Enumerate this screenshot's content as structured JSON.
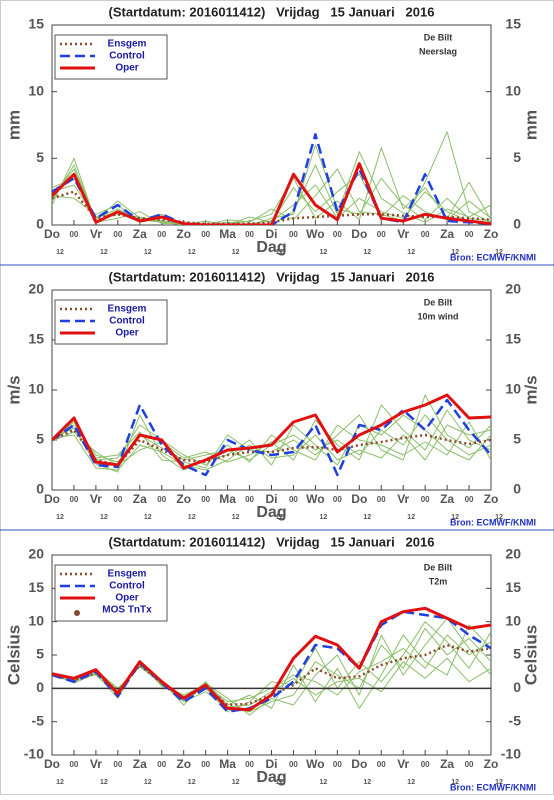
{
  "chart_data": [
    {
      "type": "line",
      "title": "(Startdatum: 2016011412)   Vrijdag   15 Januari   2016",
      "location": "De Bilt",
      "variable": "Neerslag",
      "xlabel": "Dag",
      "ylabel": "mm",
      "source": "Bron: ECMWF/KNMI",
      "x": [
        0,
        12,
        24,
        36,
        48,
        60,
        72,
        84,
        96,
        108,
        120,
        132,
        144,
        156,
        168,
        180,
        192,
        204,
        216,
        228,
        240
      ],
      "xlim": [
        0,
        240
      ],
      "xticks": [
        {
          "value": 0,
          "label": "Do"
        },
        {
          "value": 12,
          "label": "00"
        },
        {
          "value": 24,
          "label": "Vr"
        },
        {
          "value": 36,
          "label": "00"
        },
        {
          "value": 48,
          "label": "Za"
        },
        {
          "value": 60,
          "label": "00"
        },
        {
          "value": 72,
          "label": "Zo"
        },
        {
          "value": 84,
          "label": "00"
        },
        {
          "value": 96,
          "label": "Ma"
        },
        {
          "value": 108,
          "label": "00"
        },
        {
          "value": 120,
          "label": "Di"
        },
        {
          "value": 132,
          "label": "00"
        },
        {
          "value": 144,
          "label": "Wo"
        },
        {
          "value": 156,
          "label": "00"
        },
        {
          "value": 168,
          "label": "Do"
        },
        {
          "value": 180,
          "label": "00"
        },
        {
          "value": 192,
          "label": "Vr"
        },
        {
          "value": 204,
          "label": "00"
        },
        {
          "value": 216,
          "label": "Za"
        },
        {
          "value": 228,
          "label": "00"
        },
        {
          "value": 240,
          "label": "Zo"
        }
      ],
      "xtick_sublabel": "12",
      "ylim": [
        0,
        15
      ],
      "yticks": [
        0,
        5,
        10,
        15
      ],
      "zero_line": false,
      "members": {
        "color": "#8cbf6a",
        "values": [
          [
            2.5,
            3.0,
            0.5,
            1.2,
            0.4,
            0.2,
            0.0,
            0.0,
            0.0,
            0.1,
            0.3,
            1.5,
            3.0,
            0.5,
            2.0,
            1.0,
            0.5,
            2.5,
            1.0,
            0.3,
            0.2
          ],
          [
            1.8,
            4.5,
            0.3,
            0.8,
            0.6,
            0.3,
            0.1,
            0.0,
            0.2,
            0.0,
            0.5,
            0.8,
            6.0,
            1.2,
            0.8,
            3.5,
            1.5,
            0.4,
            2.0,
            0.5,
            0.3
          ],
          [
            2.2,
            2.0,
            0.8,
            1.5,
            0.2,
            0.5,
            0.0,
            0.1,
            0.0,
            0.6,
            0.2,
            2.8,
            1.0,
            2.5,
            3.8,
            0.6,
            2.2,
            1.0,
            0.4,
            1.8,
            0.5
          ],
          [
            1.5,
            5.0,
            0.2,
            0.5,
            1.0,
            0.1,
            0.2,
            0.0,
            0.4,
            0.2,
            1.2,
            0.4,
            2.2,
            4.2,
            1.0,
            0.8,
            0.3,
            3.2,
            7.0,
            1.0,
            0.2
          ],
          [
            2.8,
            3.5,
            0.6,
            0.9,
            0.3,
            0.8,
            0.0,
            0.3,
            0.0,
            0.1,
            0.0,
            1.0,
            4.5,
            0.8,
            5.5,
            2.0,
            0.9,
            0.2,
            1.2,
            0.6,
            1.5
          ],
          [
            2.0,
            4.2,
            0.4,
            1.8,
            0.5,
            0.2,
            0.1,
            0.0,
            0.1,
            0.3,
            0.8,
            3.5,
            0.5,
            1.8,
            0.4,
            5.8,
            1.2,
            2.8,
            0.5,
            3.2,
            0.4
          ]
        ]
      },
      "series": [
        {
          "name": "Ensgem",
          "color": "#8b4a2b",
          "style": "dotted",
          "values": [
            2.0,
            2.5,
            0.5,
            0.8,
            0.5,
            0.4,
            0.2,
            0.1,
            0.1,
            0.1,
            0.2,
            0.5,
            0.6,
            0.7,
            0.8,
            0.8,
            0.7,
            0.6,
            0.6,
            0.5,
            0.4
          ]
        },
        {
          "name": "Control",
          "color": "#1f3fe0",
          "style": "dashed",
          "values": [
            2.5,
            3.5,
            0.5,
            1.5,
            0.3,
            0.8,
            0.1,
            0.0,
            0.0,
            0.0,
            0.0,
            1.0,
            6.8,
            1.0,
            4.2,
            0.5,
            0.2,
            3.8,
            0.3,
            0.2,
            0.1
          ]
        },
        {
          "name": "Oper",
          "color": "#e01010",
          "style": "solid",
          "values": [
            2.2,
            3.8,
            0.2,
            1.0,
            0.3,
            0.6,
            0.1,
            0.0,
            0.0,
            0.0,
            0.0,
            3.8,
            1.5,
            0.4,
            4.6,
            0.5,
            0.3,
            0.8,
            0.5,
            0.3,
            0.1
          ]
        }
      ]
    },
    {
      "type": "line",
      "title": "(Startdatum: 2016011412)   Vrijdag   15 Januari   2016",
      "location": "De Bilt",
      "variable": "10m wind",
      "xlabel": "Dag",
      "ylabel": "m/s",
      "source": "Bron: ECMWF/KNMI",
      "x": [
        0,
        12,
        24,
        36,
        48,
        60,
        72,
        84,
        96,
        108,
        120,
        132,
        144,
        156,
        168,
        180,
        192,
        204,
        216,
        228,
        240
      ],
      "xlim": [
        0,
        240
      ],
      "xticks": [
        {
          "value": 0,
          "label": "Do"
        },
        {
          "value": 12,
          "label": "00"
        },
        {
          "value": 24,
          "label": "Vr"
        },
        {
          "value": 36,
          "label": "00"
        },
        {
          "value": 48,
          "label": "Za"
        },
        {
          "value": 60,
          "label": "00"
        },
        {
          "value": 72,
          "label": "Zo"
        },
        {
          "value": 84,
          "label": "00"
        },
        {
          "value": 96,
          "label": "Ma"
        },
        {
          "value": 108,
          "label": "00"
        },
        {
          "value": 120,
          "label": "Di"
        },
        {
          "value": 132,
          "label": "00"
        },
        {
          "value": 144,
          "label": "Wo"
        },
        {
          "value": 156,
          "label": "00"
        },
        {
          "value": 168,
          "label": "Do"
        },
        {
          "value": 180,
          "label": "00"
        },
        {
          "value": 192,
          "label": "Vr"
        },
        {
          "value": 204,
          "label": "00"
        },
        {
          "value": 216,
          "label": "Za"
        },
        {
          "value": 228,
          "label": "00"
        },
        {
          "value": 240,
          "label": "Zo"
        }
      ],
      "xtick_sublabel": "12",
      "ylim": [
        0,
        20
      ],
      "yticks": [
        0,
        5,
        10,
        15,
        20
      ],
      "zero_line": false,
      "members": {
        "color": "#8cbf6a",
        "values": [
          [
            5.0,
            6.5,
            3.5,
            2.8,
            5.5,
            4.2,
            3.0,
            3.5,
            4.0,
            3.0,
            4.5,
            5.5,
            4.0,
            5.0,
            3.5,
            6.0,
            4.5,
            7.5,
            5.0,
            3.5,
            4.5
          ],
          [
            5.2,
            5.5,
            2.2,
            2.0,
            4.5,
            3.8,
            2.5,
            2.0,
            3.0,
            4.5,
            3.2,
            3.5,
            5.5,
            3.0,
            4.0,
            3.2,
            5.5,
            3.0,
            6.5,
            5.5,
            6.0
          ],
          [
            4.8,
            7.0,
            3.0,
            3.2,
            6.5,
            5.0,
            3.5,
            2.5,
            4.5,
            2.8,
            5.5,
            4.0,
            3.0,
            6.5,
            5.0,
            4.5,
            3.5,
            4.8,
            3.5,
            6.8,
            3.0
          ],
          [
            5.1,
            6.2,
            2.6,
            1.8,
            7.5,
            3.5,
            2.0,
            3.0,
            3.5,
            5.0,
            2.5,
            6.5,
            4.5,
            2.5,
            6.5,
            5.5,
            7.5,
            6.0,
            4.0,
            3.0,
            5.5
          ],
          [
            4.9,
            5.8,
            3.8,
            2.5,
            4.0,
            4.8,
            3.2,
            3.8,
            2.8,
            3.5,
            4.8,
            3.0,
            7.0,
            4.5,
            3.0,
            8.5,
            6.0,
            4.0,
            8.0,
            5.0,
            4.0
          ],
          [
            5.0,
            6.8,
            3.2,
            3.5,
            5.8,
            3.0,
            2.8,
            2.2,
            5.5,
            4.0,
            3.8,
            5.0,
            3.5,
            5.5,
            7.5,
            4.0,
            3.0,
            9.5,
            5.5,
            4.2,
            6.5
          ]
        ]
      },
      "series": [
        {
          "name": "Ensgem",
          "color": "#8b4a2b",
          "style": "dotted",
          "values": [
            5.0,
            6.0,
            3.0,
            2.5,
            5.0,
            4.0,
            3.0,
            2.8,
            3.5,
            3.8,
            3.8,
            4.2,
            4.3,
            4.0,
            4.5,
            4.8,
            5.2,
            5.5,
            5.0,
            4.6,
            5.0
          ]
        },
        {
          "name": "Control",
          "color": "#1f3fe0",
          "style": "dashed",
          "values": [
            5.0,
            6.5,
            2.5,
            2.3,
            8.5,
            4.5,
            2.5,
            1.5,
            5.0,
            4.0,
            3.5,
            3.8,
            6.5,
            1.5,
            6.5,
            6.0,
            8.0,
            6.0,
            9.0,
            6.0,
            3.5
          ]
        },
        {
          "name": "Oper",
          "color": "#e01010",
          "style": "solid",
          "values": [
            5.0,
            7.2,
            2.8,
            2.5,
            5.5,
            5.0,
            2.2,
            3.0,
            4.0,
            4.2,
            4.5,
            6.8,
            7.5,
            3.8,
            5.5,
            6.5,
            7.8,
            8.5,
            9.5,
            7.2,
            7.3
          ]
        }
      ]
    },
    {
      "type": "line",
      "title": "(Startdatum: 2016011412)   Vrijdag   15 Januari   2016",
      "location": "De Bilt",
      "variable": "T2m",
      "xlabel": "Dag",
      "ylabel": "Celsius",
      "source": "Bron: ECMWF/KNMI",
      "x": [
        0,
        12,
        24,
        36,
        48,
        60,
        72,
        84,
        96,
        108,
        120,
        132,
        144,
        156,
        168,
        180,
        192,
        204,
        216,
        228,
        240
      ],
      "xlim": [
        0,
        240
      ],
      "xticks": [
        {
          "value": 0,
          "label": "Do"
        },
        {
          "value": 12,
          "label": "00"
        },
        {
          "value": 24,
          "label": "Vr"
        },
        {
          "value": 36,
          "label": "00"
        },
        {
          "value": 48,
          "label": "Za"
        },
        {
          "value": 60,
          "label": "00"
        },
        {
          "value": 72,
          "label": "Zo"
        },
        {
          "value": 84,
          "label": "00"
        },
        {
          "value": 96,
          "label": "Ma"
        },
        {
          "value": 108,
          "label": "00"
        },
        {
          "value": 120,
          "label": "Di"
        },
        {
          "value": 132,
          "label": "00"
        },
        {
          "value": 144,
          "label": "Wo"
        },
        {
          "value": 156,
          "label": "00"
        },
        {
          "value": 168,
          "label": "Do"
        },
        {
          "value": 180,
          "label": "00"
        },
        {
          "value": 192,
          "label": "Vr"
        },
        {
          "value": 204,
          "label": "00"
        },
        {
          "value": 216,
          "label": "Za"
        },
        {
          "value": 228,
          "label": "00"
        },
        {
          "value": 240,
          "label": "Zo"
        }
      ],
      "xtick_sublabel": "12",
      "ylim": [
        -10,
        20
      ],
      "yticks": [
        -10,
        -5,
        0,
        5,
        10,
        15,
        20
      ],
      "zero_line": true,
      "members": {
        "color": "#8cbf6a",
        "values": [
          [
            2.0,
            1.0,
            2.5,
            -0.5,
            3.5,
            0.5,
            -1.0,
            0.5,
            -2.0,
            -1.5,
            0.0,
            2.0,
            1.0,
            -1.0,
            2.5,
            4.0,
            6.0,
            3.0,
            8.0,
            5.0,
            7.0
          ],
          [
            2.2,
            1.5,
            2.0,
            -1.0,
            3.8,
            1.2,
            -2.0,
            -0.5,
            -3.0,
            -3.5,
            -2.0,
            -1.0,
            4.0,
            2.0,
            0.0,
            6.5,
            3.0,
            9.0,
            5.0,
            7.5,
            4.0
          ],
          [
            1.8,
            1.2,
            2.8,
            0.0,
            3.2,
            0.8,
            -1.8,
            1.0,
            -2.5,
            -1.0,
            -3.0,
            3.5,
            -2.0,
            3.0,
            -3.0,
            2.0,
            8.0,
            4.0,
            2.0,
            9.5,
            6.0
          ],
          [
            2.1,
            0.8,
            2.2,
            -1.5,
            4.0,
            0.3,
            -1.2,
            0.0,
            -3.5,
            -2.0,
            1.0,
            0.5,
            6.0,
            0.0,
            4.0,
            1.0,
            5.0,
            10.0,
            7.0,
            3.0,
            8.5
          ],
          [
            2.3,
            1.4,
            2.6,
            -0.2,
            3.6,
            1.0,
            -2.5,
            0.8,
            -1.5,
            -4.0,
            -1.5,
            -2.5,
            2.0,
            5.0,
            -1.0,
            8.0,
            2.0,
            6.5,
            10.5,
            6.0,
            2.0
          ],
          [
            1.9,
            1.1,
            2.4,
            -0.8,
            3.4,
            0.6,
            -1.5,
            0.2,
            -2.8,
            -2.5,
            -0.5,
            1.5,
            -1.0,
            1.0,
            1.5,
            -0.5,
            4.0,
            1.5,
            4.5,
            1.0,
            3.0
          ]
        ]
      },
      "series": [
        {
          "name": "Ensgem",
          "color": "#8b4a2b",
          "style": "dotted",
          "values": [
            2.0,
            1.2,
            2.3,
            -0.5,
            3.5,
            0.8,
            -1.5,
            0.2,
            -2.5,
            -2.3,
            -1.0,
            0.5,
            3.0,
            1.5,
            1.8,
            3.5,
            4.5,
            5.0,
            6.5,
            5.5,
            6.0
          ]
        },
        {
          "name": "Control",
          "color": "#1f3fe0",
          "style": "dashed",
          "values": [
            2.0,
            1.0,
            2.5,
            -1.2,
            3.8,
            0.8,
            -2.0,
            0.0,
            -3.5,
            -3.0,
            -1.5,
            1.0,
            6.5,
            6.0,
            3.0,
            9.5,
            11.5,
            11.0,
            10.5,
            8.0,
            6.0
          ]
        },
        {
          "name": "Oper",
          "color": "#e01010",
          "style": "solid",
          "values": [
            2.2,
            1.5,
            2.8,
            -0.8,
            4.0,
            1.0,
            -1.5,
            0.5,
            -3.0,
            -3.2,
            -1.0,
            4.5,
            7.8,
            6.5,
            3.0,
            10.0,
            11.5,
            12.0,
            10.5,
            9.0,
            9.5
          ]
        },
        {
          "name": "MOS TnTx",
          "color": "#8b4a2b",
          "style": "dot",
          "values": [
            null,
            null,
            null,
            null,
            null,
            null,
            null,
            null,
            null,
            null,
            null,
            null,
            null,
            null,
            null,
            null,
            null,
            null,
            null,
            null,
            null
          ]
        }
      ]
    }
  ]
}
